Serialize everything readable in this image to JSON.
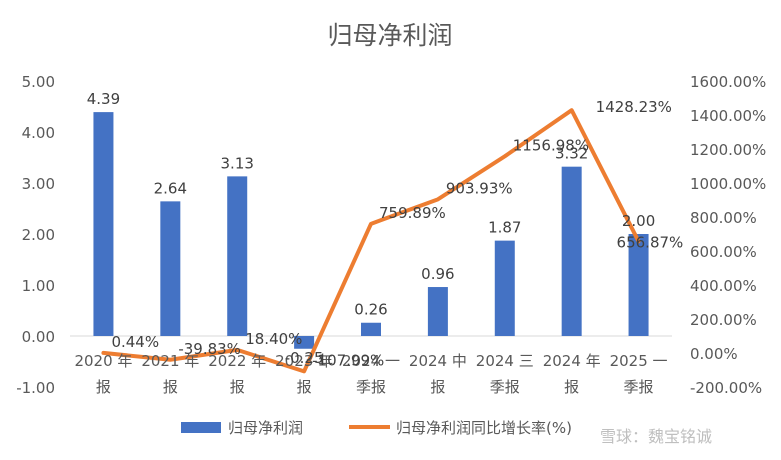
{
  "chart_data": {
    "type": "bar",
    "title": "归母净利润",
    "categories": [
      [
        "2020 年",
        "报"
      ],
      [
        "2021 年",
        "报"
      ],
      [
        "2022 年",
        "报"
      ],
      [
        "2023 年",
        "报"
      ],
      [
        "2024 一",
        "季报"
      ],
      [
        "2024 中",
        "报"
      ],
      [
        "2024 三",
        "季报"
      ],
      [
        "2024 年",
        "报"
      ],
      [
        "2025 一",
        "季报"
      ]
    ],
    "series": [
      {
        "name": "归母净利润",
        "type": "bar",
        "axis": "left",
        "color": "#4472C4",
        "values": [
          4.39,
          2.64,
          3.13,
          -0.25,
          0.26,
          0.96,
          1.87,
          3.32,
          2.0
        ],
        "labels": [
          "4.39",
          "2.64",
          "3.13",
          "-0.25",
          "0.26",
          "0.96",
          "1.87",
          "3.32",
          "2.00"
        ]
      },
      {
        "name": "归母净利润同比增长率(%)",
        "type": "line",
        "axis": "right",
        "color": "#ED7D31",
        "values": [
          0.44,
          -39.83,
          18.4,
          -107.99,
          759.89,
          903.93,
          1156.98,
          1428.23,
          656.87
        ],
        "labels": [
          "0.44%",
          "-39.83%",
          "18.40%",
          "-107.99%",
          "759.89%",
          "903.93%",
          "1156.98%",
          "1428.23%",
          "656.87%"
        ]
      }
    ],
    "y_left": {
      "ylim": [
        -1,
        5
      ],
      "ticks": [
        "5.00",
        "4.00",
        "3.00",
        "2.00",
        "1.00",
        "0.00",
        "-1.00"
      ]
    },
    "y_right": {
      "ylim": [
        -200,
        1600
      ],
      "ticks": [
        "1600.00%",
        "1400.00%",
        "1200.00%",
        "1000.00%",
        "800.00%",
        "600.00%",
        "400.00%",
        "200.00%",
        "0.00%",
        "-200.00%"
      ]
    },
    "grid": false,
    "legend": "bottom"
  },
  "watermark": "雪球：魏宝铭诚"
}
